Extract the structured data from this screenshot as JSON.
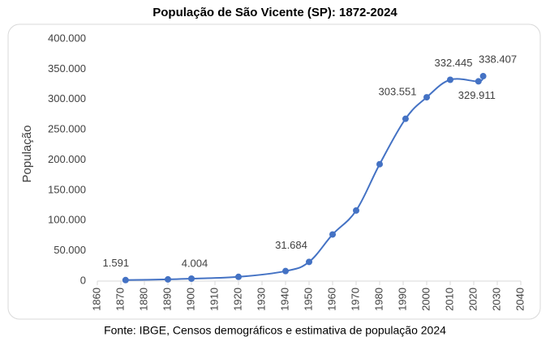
{
  "chart_data": {
    "type": "scatter",
    "title": "População de São Vicente (SP): 1872-2024",
    "y_label": "População",
    "source": "Fonte: IBGE, Censos demográficos e estimativa de população 2024",
    "x": [
      1872,
      1890,
      1900,
      1920,
      1940,
      1950,
      1960,
      1970,
      1980,
      1991,
      2000,
      2010,
      2022,
      2024
    ],
    "values": [
      1591,
      2800,
      4004,
      7000,
      16500,
      31684,
      77000,
      116500,
      193000,
      268000,
      303551,
      332445,
      329911,
      338407
    ],
    "value_labels": [
      "1.591",
      null,
      "4.004",
      null,
      null,
      "31.684",
      null,
      null,
      null,
      null,
      "303.551",
      "332.445",
      "329.911",
      "338.407"
    ],
    "color": "#4472c4",
    "xlim": [
      1860,
      2040
    ],
    "xticks": [
      1860,
      1870,
      1880,
      1890,
      1900,
      1910,
      1920,
      1930,
      1940,
      1950,
      1960,
      1970,
      1980,
      1990,
      2000,
      2010,
      2020,
      2030,
      2040
    ],
    "ylim": [
      0,
      400000
    ],
    "yticks": [
      0,
      {
        "value": 50000,
        "label": "50.000"
      },
      {
        "value": 100000,
        "label": "100.000"
      },
      {
        "value": 150000,
        "label": "150.000"
      },
      {
        "value": 200000,
        "label": "200.000"
      },
      {
        "value": 250000,
        "label": "250.000"
      },
      {
        "value": 300000,
        "label": "300.000"
      },
      {
        "value": 350000,
        "label": "350.000"
      },
      {
        "value": 400000,
        "label": "400.000"
      }
    ],
    "grid": false
  }
}
